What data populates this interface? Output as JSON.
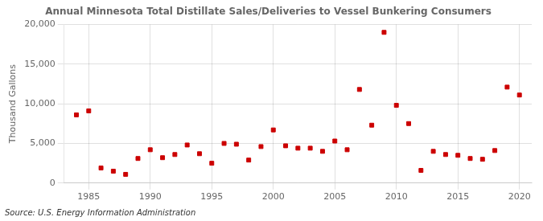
{
  "chart_data": {
    "type": "scatter",
    "title": "Annual Minnesota Total Distillate Sales/Deliveries to Vessel Bunkering Consumers",
    "ylabel": "Thousand Gallons",
    "annotations": [
      "Source: U.S. Energy Information Administration"
    ],
    "x": [
      1984,
      1985,
      1986,
      1987,
      1988,
      1989,
      1990,
      1991,
      1992,
      1993,
      1994,
      1995,
      1996,
      1997,
      1998,
      1999,
      2000,
      2001,
      2002,
      2003,
      2004,
      2005,
      2006,
      2007,
      2008,
      2009,
      2010,
      2011,
      2012,
      2013,
      2014,
      2015,
      2016,
      2017,
      2018,
      2019,
      2020
    ],
    "values": [
      8600,
      9100,
      1900,
      1500,
      1100,
      3100,
      4200,
      3200,
      3600,
      4800,
      3700,
      2500,
      5000,
      4900,
      2900,
      4600,
      6700,
      4700,
      4400,
      4400,
      4000,
      5300,
      4200,
      11800,
      7300,
      19000,
      9800,
      7500,
      1600,
      4000,
      3600,
      3500,
      3100,
      3000,
      4100,
      12100,
      11100
    ],
    "color": "#cc0000",
    "marker": "square",
    "xlim": [
      1983,
      2021
    ],
    "xticks": [
      1985,
      1990,
      1995,
      2000,
      2005,
      2010,
      2015,
      2020
    ],
    "ylim": [
      0,
      20000
    ],
    "yticks": [
      0,
      {
        "value": 5000,
        "label": "5,000"
      },
      {
        "value": 10000,
        "label": "10,000"
      },
      {
        "value": 15000,
        "label": "15,000"
      },
      {
        "value": 20000,
        "label": "20,000"
      }
    ],
    "grid": true
  }
}
